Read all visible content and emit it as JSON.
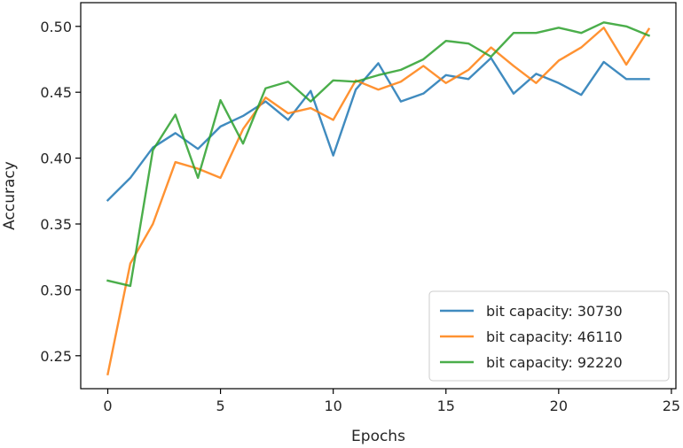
{
  "chart_data": {
    "type": "line",
    "title": "",
    "xlabel": "Epochs",
    "ylabel": "Accuracy",
    "xlim": [
      -1.2,
      25.2
    ],
    "ylim": [
      0.225,
      0.518
    ],
    "xticks": [
      0,
      5,
      10,
      15,
      20,
      25
    ],
    "yticks": [
      0.25,
      0.3,
      0.35,
      0.4,
      0.45,
      0.5
    ],
    "ytick_labels": [
      "0.25",
      "0.30",
      "0.35",
      "0.40",
      "0.45",
      "0.50"
    ],
    "grid": false,
    "legend_position": "bottom-right",
    "x": [
      0,
      1,
      2,
      3,
      4,
      5,
      6,
      7,
      8,
      9,
      10,
      11,
      12,
      13,
      14,
      15,
      16,
      17,
      18,
      19,
      20,
      21,
      22,
      23,
      24
    ],
    "series": [
      {
        "name": "bit capacity: 30730",
        "color": "#1f77b4",
        "values": [
          0.368,
          0.385,
          0.408,
          0.419,
          0.407,
          0.424,
          0.432,
          0.443,
          0.429,
          0.451,
          0.402,
          0.452,
          0.472,
          0.443,
          0.449,
          0.463,
          0.46,
          0.476,
          0.449,
          0.464,
          0.457,
          0.448,
          0.473,
          0.46,
          0.46
        ]
      },
      {
        "name": "bit capacity: 46110",
        "color": "#ff7f0e",
        "values": [
          0.236,
          0.32,
          0.35,
          0.397,
          0.392,
          0.385,
          0.422,
          0.446,
          0.434,
          0.438,
          0.429,
          0.459,
          0.452,
          0.458,
          0.47,
          0.457,
          0.467,
          0.484,
          0.47,
          0.457,
          0.474,
          0.484,
          0.499,
          0.471,
          0.498
        ]
      },
      {
        "name": "bit capacity: 92220",
        "color": "#2ca02c",
        "values": [
          0.307,
          0.303,
          0.406,
          0.433,
          0.385,
          0.444,
          0.411,
          0.453,
          0.458,
          0.443,
          0.459,
          0.458,
          0.463,
          0.467,
          0.475,
          0.489,
          0.487,
          0.477,
          0.495,
          0.495,
          0.499,
          0.495,
          0.503,
          0.5,
          0.493
        ]
      }
    ]
  }
}
